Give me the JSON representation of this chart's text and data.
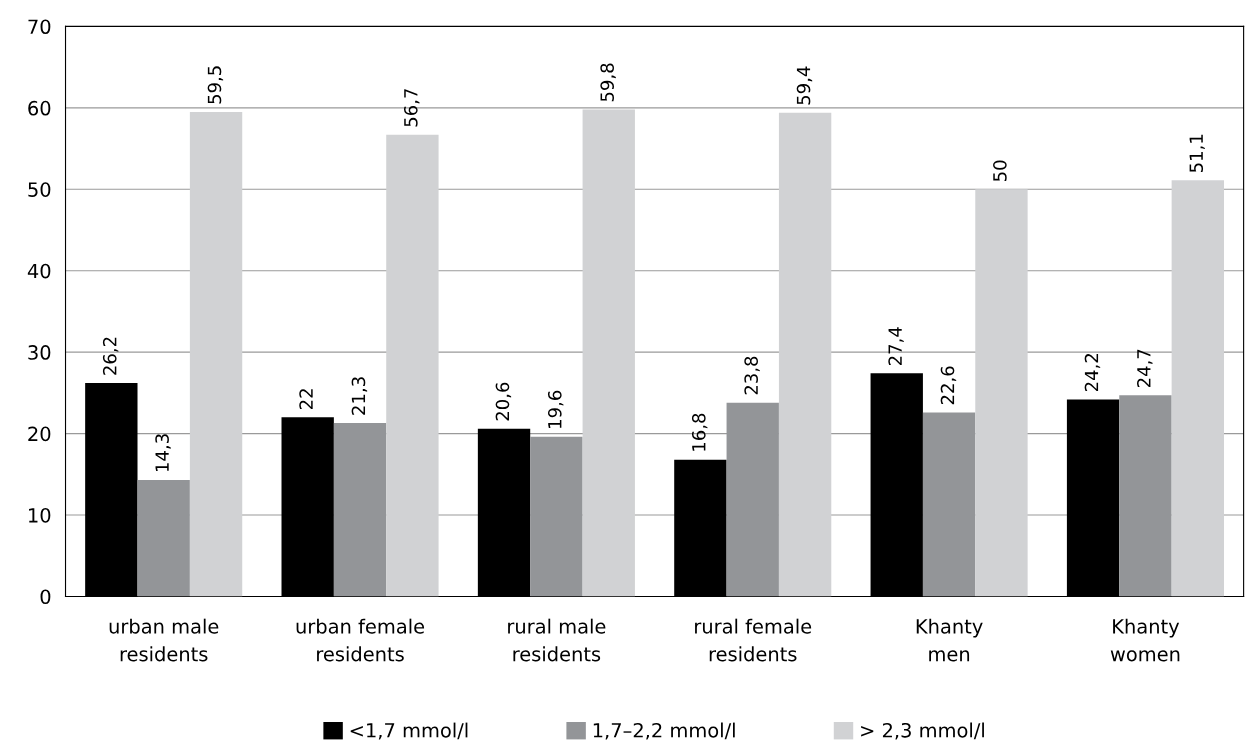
{
  "chart_data": {
    "type": "bar",
    "categories": [
      "urban male\nresidents",
      "urban female\nresidents",
      "rural male\nresidents",
      "rural female\nresidents",
      "Khanty\nmen",
      "Khanty\nwomen"
    ],
    "series": [
      {
        "name": "<1,7 mmol/l",
        "color": "#000000",
        "values": [
          26.2,
          22,
          20.6,
          16.8,
          27.4,
          24.2
        ],
        "value_labels": [
          "26,2",
          "22",
          "20,6",
          "16,8",
          "27,4",
          "24,2"
        ]
      },
      {
        "name": "1,7–2,2 mmol/l",
        "color": "#939598",
        "values": [
          14.3,
          21.3,
          19.6,
          23.8,
          22.6,
          24.7
        ],
        "value_labels": [
          "14,3",
          "21,3",
          "19,6",
          "23,8",
          "22,6",
          "24,7"
        ]
      },
      {
        "name": "> 2,3 mmol/l",
        "color": "#d1d2d4",
        "values": [
          59.5,
          56.7,
          59.8,
          59.4,
          50,
          51.1
        ],
        "value_labels": [
          "59,5",
          "56,7",
          "59,8",
          "59,4",
          "50",
          "51,1"
        ]
      }
    ],
    "ylim": [
      0,
      70
    ],
    "yticks": [
      0,
      10,
      20,
      30,
      40,
      50,
      60,
      70
    ],
    "grid": "y",
    "legend": "bottom"
  }
}
